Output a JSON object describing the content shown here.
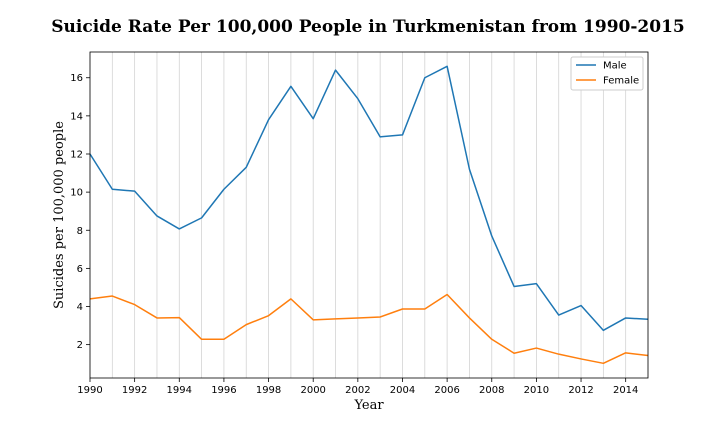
{
  "chart_data": {
    "type": "line",
    "title": "Suicide Rate Per 100,000 People in Turkmenistan from 1990-2015",
    "xlabel": "Year",
    "ylabel": "Suicides per 100,000 people",
    "x": [
      1990,
      1991,
      1992,
      1993,
      1994,
      1995,
      1996,
      1997,
      1998,
      1999,
      2000,
      2001,
      2002,
      2003,
      2004,
      2005,
      2006,
      2007,
      2008,
      2009,
      2010,
      2011,
      2012,
      2013,
      2014,
      2015
    ],
    "xlim": [
      1990,
      2015
    ],
    "ylim": [
      0.25,
      17.35
    ],
    "xticks": [
      "1990",
      "1992",
      "1994",
      "1996",
      "1998",
      "2000",
      "2002",
      "2004",
      "2006",
      "2008",
      "2010",
      "2012",
      "2014"
    ],
    "yticks": [
      "2",
      "4",
      "6",
      "8",
      "10",
      "12",
      "14",
      "16"
    ],
    "grid": "vertical",
    "legend_position": "top-right",
    "series": [
      {
        "name": "Male",
        "color": "#1f77b4",
        "values": [
          12.0,
          10.15,
          10.05,
          8.75,
          8.07,
          8.65,
          10.15,
          11.3,
          13.8,
          15.55,
          13.85,
          16.4,
          14.9,
          12.9,
          13.0,
          16.0,
          16.6,
          11.2,
          7.7,
          5.05,
          5.2,
          3.55,
          4.05,
          2.75,
          3.4,
          3.33
        ]
      },
      {
        "name": "Female",
        "color": "#ff7f0e",
        "values": [
          4.4,
          4.55,
          4.1,
          3.4,
          3.42,
          2.28,
          2.28,
          3.05,
          3.52,
          4.4,
          3.3,
          3.35,
          3.4,
          3.45,
          3.87,
          3.87,
          4.63,
          3.4,
          2.28,
          1.55,
          1.82,
          1.5,
          1.25,
          1.02,
          1.57,
          1.43
        ]
      }
    ]
  }
}
